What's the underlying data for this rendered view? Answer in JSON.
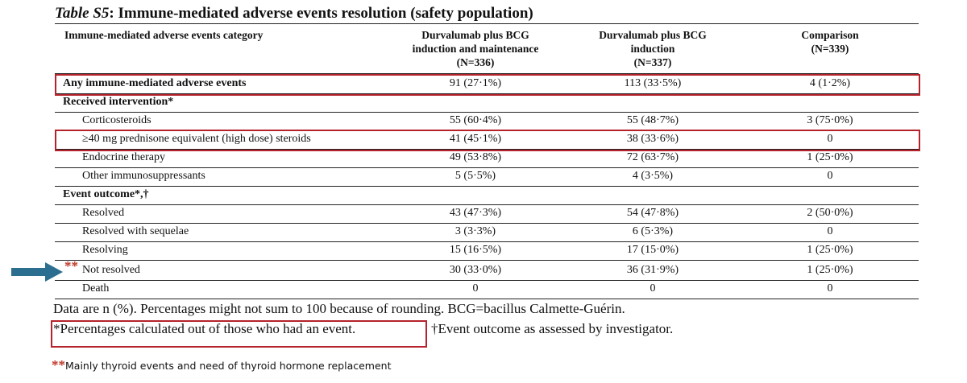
{
  "title": {
    "label": "Table S5",
    "text": ": Immune-mediated adverse events resolution (safety population)"
  },
  "header": {
    "col0": "Immune-mediated adverse events category",
    "col1": [
      "Durvalumab plus BCG",
      "induction and maintenance",
      "(N=336)"
    ],
    "col2": [
      "Durvalumab plus BCG",
      "induction",
      "(N=337)"
    ],
    "col3": [
      "Comparison",
      "(N=339)"
    ]
  },
  "rows": [
    {
      "label": "Any immune-mediated adverse events",
      "v1": "91 (27·1%)",
      "v2": "113 (33·5%)",
      "v3": "4 (1·2%)"
    },
    {
      "label": "Received intervention*",
      "v1": "",
      "v2": "",
      "v3": ""
    },
    {
      "label": "Corticosteroids",
      "v1": "55 (60·4%)",
      "v2": "55 (48·7%)",
      "v3": "3 (75·0%)"
    },
    {
      "label": "≥40 mg prednisone equivalent (high dose) steroids",
      "v1": "41 (45·1%)",
      "v2": "38 (33·6%)",
      "v3": "0"
    },
    {
      "label": "Endocrine therapy",
      "v1": "49 (53·8%)",
      "v2": "72 (63·7%)",
      "v3": "1 (25·0%)"
    },
    {
      "label": "Other immunosuppressants",
      "v1": "5 (5·5%)",
      "v2": "4 (3·5%)",
      "v3": "0"
    },
    {
      "label": "Event outcome*,†",
      "v1": "",
      "v2": "",
      "v3": ""
    },
    {
      "label": "Resolved",
      "v1": "43 (47·3%)",
      "v2": "54 (47·8%)",
      "v3": "2 (50·0%)"
    },
    {
      "label": "Resolved with sequelae",
      "v1": "3 (3·3%)",
      "v2": "6 (5·3%)",
      "v3": "0"
    },
    {
      "label": "Resolving",
      "v1": "15 (16·5%)",
      "v2": "17 (15·0%)",
      "v3": "1 (25·0%)"
    },
    {
      "label": "Not resolved",
      "v1": "30 (33·0%)",
      "v2": "36 (31·9%)",
      "v3": "1 (25·0%)"
    },
    {
      "label": "Death",
      "v1": "0",
      "v2": "0",
      "v3": "0"
    }
  ],
  "annotation_stars": "**",
  "notes": {
    "data_note": "Data are n (%). Percentages might not sum to 100 because of rounding. BCG=bacillus Calmette-Guérin.",
    "footnote_star": "*Percentages calculated out of those who had an event.",
    "footnote_dagger": "†Event outcome as assessed by investigator.",
    "footnote_stars": "**",
    "footnote_stars_text": "Mainly thyroid events and need of thyroid hormone replacement"
  },
  "colors": {
    "highlight_box": "#b5222b",
    "arrow": "#2c6e8f",
    "stars": "#c0392b"
  }
}
